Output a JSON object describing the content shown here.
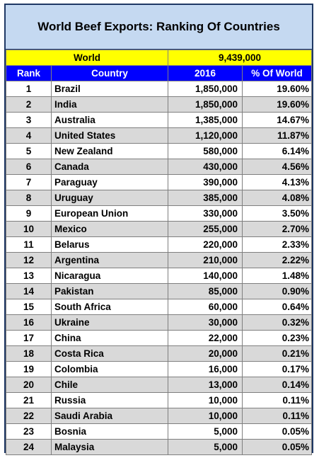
{
  "chart_data": {
    "type": "table",
    "title": "World Beef Exports:  Ranking Of Countries",
    "world": {
      "label": "World",
      "value": "9,439,000"
    },
    "columns": [
      "Rank",
      "Country",
      "2016",
      "% Of World"
    ],
    "rows": [
      {
        "rank": "1",
        "country": "Brazil",
        "value": "1,850,000",
        "pct": "19.60%"
      },
      {
        "rank": "2",
        "country": "India",
        "value": "1,850,000",
        "pct": "19.60%"
      },
      {
        "rank": "3",
        "country": "Australia",
        "value": "1,385,000",
        "pct": "14.67%"
      },
      {
        "rank": "4",
        "country": "United States",
        "value": "1,120,000",
        "pct": "11.87%"
      },
      {
        "rank": "5",
        "country": "New Zealand",
        "value": "580,000",
        "pct": "6.14%"
      },
      {
        "rank": "6",
        "country": "Canada",
        "value": "430,000",
        "pct": "4.56%"
      },
      {
        "rank": "7",
        "country": "Paraguay",
        "value": "390,000",
        "pct": "4.13%"
      },
      {
        "rank": "8",
        "country": "Uruguay",
        "value": "385,000",
        "pct": "4.08%"
      },
      {
        "rank": "9",
        "country": "European Union",
        "value": "330,000",
        "pct": "3.50%"
      },
      {
        "rank": "10",
        "country": "Mexico",
        "value": "255,000",
        "pct": "2.70%"
      },
      {
        "rank": "11",
        "country": "Belarus",
        "value": "220,000",
        "pct": "2.33%"
      },
      {
        "rank": "12",
        "country": "Argentina",
        "value": "210,000",
        "pct": "2.22%"
      },
      {
        "rank": "13",
        "country": "Nicaragua",
        "value": "140,000",
        "pct": "1.48%"
      },
      {
        "rank": "14",
        "country": "Pakistan",
        "value": "85,000",
        "pct": "0.90%"
      },
      {
        "rank": "15",
        "country": "South Africa",
        "value": "60,000",
        "pct": "0.64%"
      },
      {
        "rank": "16",
        "country": "Ukraine",
        "value": "30,000",
        "pct": "0.32%"
      },
      {
        "rank": "17",
        "country": "China",
        "value": "22,000",
        "pct": "0.23%"
      },
      {
        "rank": "18",
        "country": "Costa Rica",
        "value": "20,000",
        "pct": "0.21%"
      },
      {
        "rank": "19",
        "country": "Colombia",
        "value": "16,000",
        "pct": "0.17%"
      },
      {
        "rank": "20",
        "country": "Chile",
        "value": "13,000",
        "pct": "0.14%"
      },
      {
        "rank": "21",
        "country": "Russia",
        "value": "10,000",
        "pct": "0.11%"
      },
      {
        "rank": "22",
        "country": "Saudi Arabia",
        "value": "10,000",
        "pct": "0.11%"
      },
      {
        "rank": "23",
        "country": "Bosnia",
        "value": "5,000",
        "pct": "0.05%"
      },
      {
        "rank": "24",
        "country": "Malaysia",
        "value": "5,000",
        "pct": "0.05%"
      }
    ]
  },
  "colors": {
    "title_bg": "#c5d9f1",
    "world_row_bg": "#ffff00",
    "header_bg": "#0000ff",
    "header_text": "#ffffff",
    "alt_row_bg": "#d9d9d9"
  }
}
